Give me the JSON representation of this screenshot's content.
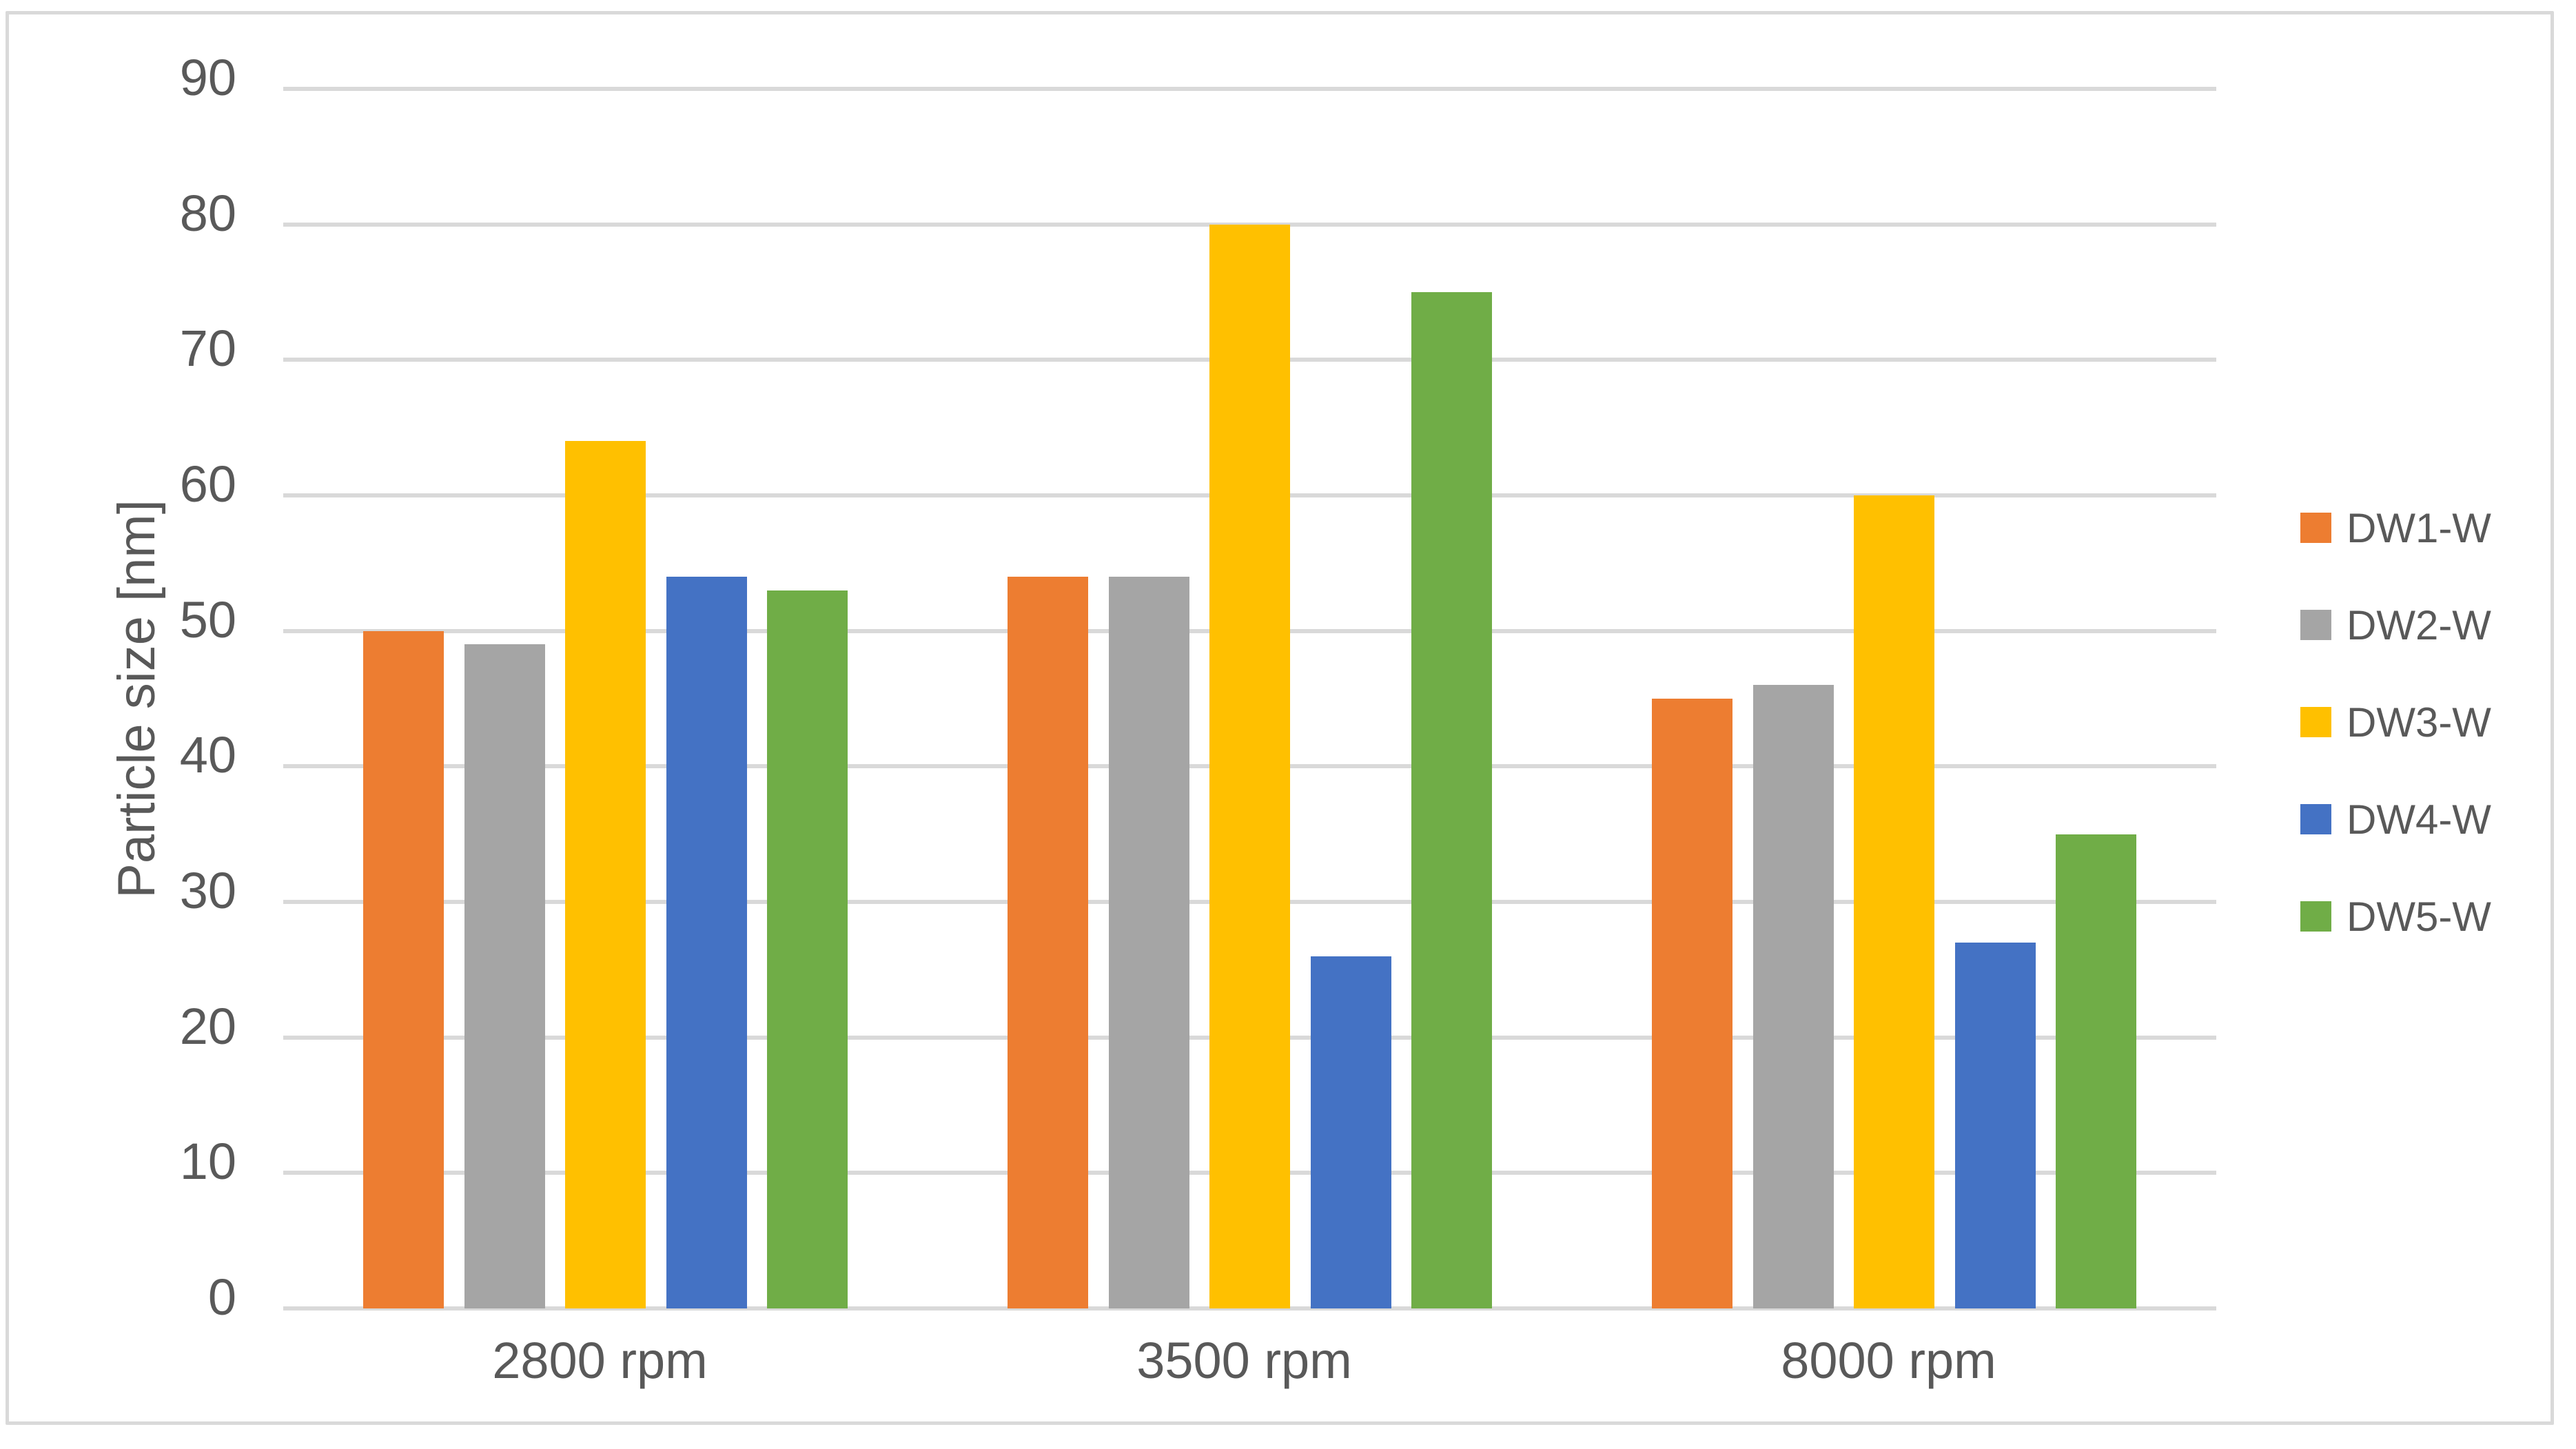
{
  "chart_data": {
    "type": "bar",
    "title": "",
    "xlabel": "",
    "ylabel": "Particle size [nm]",
    "categories": [
      "2800 rpm",
      "3500 rpm",
      "8000 rpm"
    ],
    "series": [
      {
        "name": "DW1-W",
        "color": "#ED7D31",
        "values": [
          50,
          54,
          45
        ]
      },
      {
        "name": "DW2-W",
        "color": "#A5A5A5",
        "values": [
          49,
          54,
          46
        ]
      },
      {
        "name": "DW3-W",
        "color": "#FFC000",
        "values": [
          64,
          80,
          60
        ]
      },
      {
        "name": "DW4-W",
        "color": "#4472C4",
        "values": [
          54,
          26,
          27
        ]
      },
      {
        "name": "DW5-W",
        "color": "#70AD47",
        "values": [
          53,
          75,
          35
        ]
      }
    ],
    "ylim": [
      0,
      90
    ],
    "yticks": [
      0,
      10,
      20,
      30,
      40,
      50,
      60,
      70,
      80,
      90
    ],
    "grid": true,
    "legend_position": "right"
  },
  "styles": {
    "background": "#FFFFFF",
    "gridline_color": "#D9D9D9",
    "frame_border_color": "#D9D9D9",
    "text_color": "#595959"
  }
}
